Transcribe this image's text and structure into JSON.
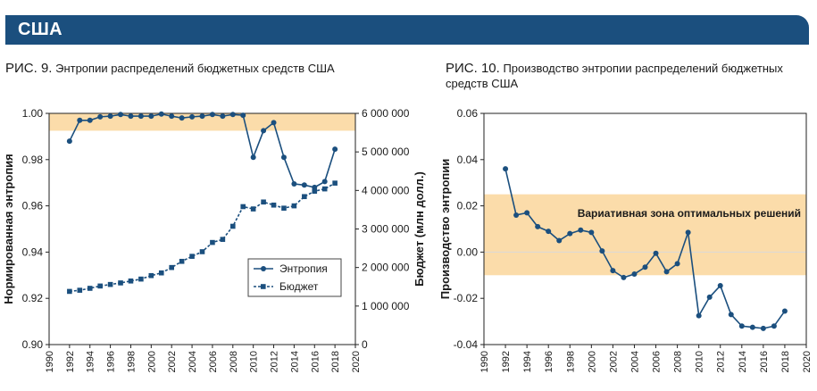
{
  "banner": {
    "title": "США"
  },
  "colors": {
    "banner": "#1b4f7e",
    "series": "#1b4f7e",
    "band": "#fbdcaa"
  },
  "fig9": {
    "label": "РИС. 9.",
    "caption_rest": "Энтропии распределений бюджетных средств США"
  },
  "fig10": {
    "label": "РИС. 10.",
    "caption_rest": "Производство энтропии распределений бюджетных средств США"
  },
  "chart_data": [
    {
      "type": "line",
      "title": "Энтропии распределений бюджетных средств США",
      "xlabel": "",
      "ylabel": "Нормированная энтропия",
      "y2label": "Бюджет (млн долл.)",
      "xlim": [
        1990,
        2020
      ],
      "ylim": [
        0.9,
        1.0
      ],
      "y2lim": [
        0,
        6000000
      ],
      "x_ticks": [
        1990,
        1992,
        1994,
        1996,
        1998,
        2000,
        2002,
        2004,
        2006,
        2008,
        2010,
        2012,
        2014,
        2016,
        2018,
        2020
      ],
      "y_ticks": [
        "1.00",
        "0.98",
        "0.96",
        "0.94",
        "0.92",
        "0.90"
      ],
      "y2_ticks": [
        "6 000 000",
        "5 000 000",
        "4 000 000",
        "3 000 000",
        "2 000 000",
        "1 000 000",
        "0"
      ],
      "band": [
        0.9925,
        1.0
      ],
      "legend": {
        "position": "bottom-right",
        "entries": [
          "Энтропия",
          "Бюджет"
        ]
      },
      "series": [
        {
          "name": "Энтропия",
          "axis": "left",
          "style": "solid-circle",
          "x": [
            1992,
            1993,
            1994,
            1995,
            1996,
            1997,
            1998,
            1999,
            2000,
            2001,
            2002,
            2003,
            2004,
            2005,
            2006,
            2007,
            2008,
            2009,
            2010,
            2011,
            2012,
            2013,
            2014,
            2015,
            2016,
            2017,
            2018
          ],
          "values": [
            0.988,
            0.997,
            0.997,
            0.9985,
            0.9988,
            0.9995,
            0.9988,
            0.9988,
            0.9988,
            0.9997,
            0.9988,
            0.998,
            0.9985,
            0.9988,
            0.9995,
            0.9988,
            0.9995,
            0.9992,
            0.981,
            0.9925,
            0.996,
            0.981,
            0.9695,
            0.969,
            0.968,
            0.9705,
            0.9845
          ]
        },
        {
          "name": "Бюджет",
          "axis": "right",
          "style": "dashed-square",
          "x": [
            1992,
            1993,
            1994,
            1995,
            1996,
            1997,
            1998,
            1999,
            2000,
            2001,
            2002,
            2003,
            2004,
            2005,
            2006,
            2007,
            2008,
            2009,
            2010,
            2011,
            2012,
            2013,
            2014,
            2015,
            2016,
            2017,
            2018
          ],
          "values": [
            1380000,
            1410000,
            1460000,
            1520000,
            1560000,
            1600000,
            1650000,
            1700000,
            1790000,
            1860000,
            2000000,
            2160000,
            2290000,
            2410000,
            2650000,
            2730000,
            3070000,
            3580000,
            3520000,
            3700000,
            3620000,
            3540000,
            3600000,
            3840000,
            3980000,
            4040000,
            4190000
          ]
        }
      ]
    },
    {
      "type": "line",
      "title": "Производство энтропии распределений бюджетных средств США",
      "xlabel": "",
      "ylabel": "Производство энтропии",
      "xlim": [
        1990,
        2020
      ],
      "ylim": [
        -0.04,
        0.06
      ],
      "x_ticks": [
        1990,
        1992,
        1994,
        1996,
        1998,
        2000,
        2002,
        2004,
        2006,
        2008,
        2010,
        2012,
        2014,
        2016,
        2018,
        2020
      ],
      "y_ticks": [
        "0.06",
        "0.04",
        "0.02",
        "0.00",
        "-0.02",
        "-0.04"
      ],
      "band": [
        -0.01,
        0.025
      ],
      "band_label": "Вариативная зона оптимальных решений",
      "series": [
        {
          "name": "Производство энтропии",
          "x": [
            1992,
            1993,
            1994,
            1995,
            1996,
            1997,
            1998,
            1999,
            2000,
            2001,
            2002,
            2003,
            2004,
            2005,
            2006,
            2007,
            2008,
            2009,
            2010,
            2011,
            2012,
            2013,
            2014,
            2015,
            2016,
            2017,
            2018
          ],
          "values": [
            0.036,
            0.016,
            0.017,
            0.011,
            0.009,
            0.005,
            0.008,
            0.0095,
            0.0085,
            0.0005,
            -0.008,
            -0.011,
            -0.0095,
            -0.0065,
            -0.0005,
            -0.0085,
            -0.005,
            0.0085,
            -0.0275,
            -0.0195,
            -0.0145,
            -0.027,
            -0.032,
            -0.0325,
            -0.033,
            -0.032,
            -0.0255
          ]
        }
      ]
    }
  ]
}
